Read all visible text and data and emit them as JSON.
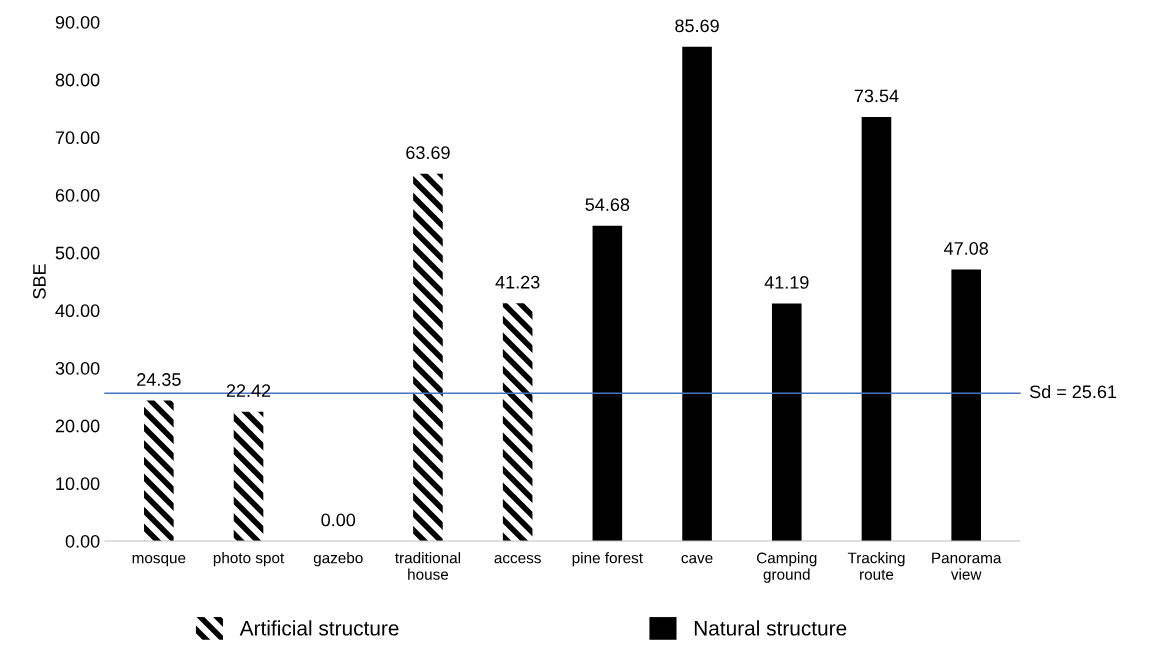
{
  "chart_data": {
    "type": "bar",
    "ylabel": "SBE",
    "categories": [
      "mosque",
      "photo spot",
      "gazebo",
      "traditional\nhouse",
      "access",
      "pine forest",
      "cave",
      "Camping\nground",
      "Tracking\nroute",
      "Panorama\nview"
    ],
    "series": [
      {
        "name": "Artificial structure",
        "color": "#000000",
        "values": [
          24.35,
          22.42,
          0.0,
          63.69,
          41.23,
          null,
          null,
          null,
          null,
          null
        ],
        "value_labels": [
          "24.35",
          "22.42",
          "0.00",
          "63.69",
          "41.23",
          null,
          null,
          null,
          null,
          null
        ]
      },
      {
        "name": "Natural structure",
        "color": "#000000",
        "values": [
          null,
          null,
          null,
          null,
          null,
          54.68,
          85.69,
          41.19,
          73.54,
          47.08
        ],
        "value_labels": [
          null,
          null,
          null,
          null,
          null,
          "54.68",
          "85.69",
          "41.19",
          "73.54",
          "47.08"
        ]
      }
    ],
    "ylim": [
      0,
      90
    ],
    "yticks": [
      {
        "value": 0,
        "label": "0.00"
      },
      {
        "value": 10,
        "label": "10.00"
      },
      {
        "value": 20,
        "label": "20.00"
      },
      {
        "value": 30,
        "label": "30.00"
      },
      {
        "value": 40,
        "label": "40.00"
      },
      {
        "value": 50,
        "label": "50.00"
      },
      {
        "value": 60,
        "label": "60.00"
      },
      {
        "value": 70,
        "label": "70.00"
      },
      {
        "value": 80,
        "label": "80.00"
      },
      {
        "value": 90,
        "label": "90.00"
      }
    ],
    "ref_lines": [
      {
        "axis": "y",
        "value": 25.61,
        "label": "Sd = 25.61",
        "color": "#4472c4"
      }
    ],
    "grid": false,
    "legend": "bottom"
  }
}
